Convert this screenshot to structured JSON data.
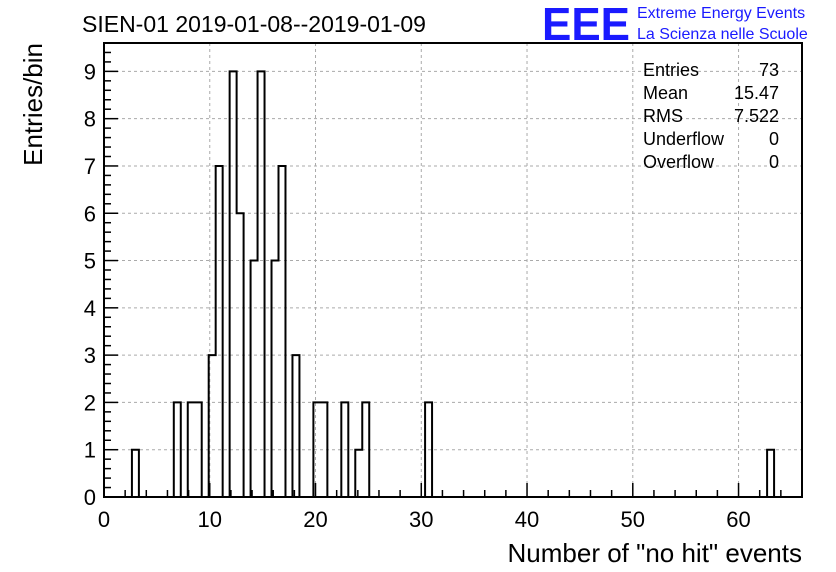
{
  "chart_data": {
    "type": "histogram",
    "title": "SIEN-01 2019-01-08--2019-01-09",
    "xlabel": "Number of \"no hit\" events",
    "ylabel": "Entries/bin",
    "xlim": [
      0,
      66
    ],
    "ylim": [
      0,
      9.6
    ],
    "bin_width": 0.66,
    "x_ticks": [
      0,
      10,
      20,
      30,
      40,
      50,
      60
    ],
    "y_ticks": [
      0,
      1,
      2,
      3,
      4,
      5,
      6,
      7,
      8,
      9
    ],
    "bins": [
      {
        "x": 2.64,
        "count": 1
      },
      {
        "x": 6.6,
        "count": 2
      },
      {
        "x": 7.92,
        "count": 2
      },
      {
        "x": 8.58,
        "count": 2
      },
      {
        "x": 9.9,
        "count": 3
      },
      {
        "x": 10.56,
        "count": 7
      },
      {
        "x": 11.88,
        "count": 9
      },
      {
        "x": 12.54,
        "count": 6
      },
      {
        "x": 13.86,
        "count": 5
      },
      {
        "x": 14.52,
        "count": 9
      },
      {
        "x": 15.84,
        "count": 5
      },
      {
        "x": 16.5,
        "count": 7
      },
      {
        "x": 17.82,
        "count": 3
      },
      {
        "x": 19.8,
        "count": 2
      },
      {
        "x": 20.46,
        "count": 2
      },
      {
        "x": 22.44,
        "count": 2
      },
      {
        "x": 23.76,
        "count": 1
      },
      {
        "x": 24.42,
        "count": 2
      },
      {
        "x": 30.36,
        "count": 2
      },
      {
        "x": 62.7,
        "count": 1
      }
    ],
    "grid": true,
    "stats": {
      "rows": [
        {
          "label": "Entries",
          "value": "73"
        },
        {
          "label": "Mean",
          "value": "15.47"
        },
        {
          "label": "RMS",
          "value": "7.522"
        },
        {
          "label": "Underflow",
          "value": "0"
        },
        {
          "label": "Overflow",
          "value": "0"
        }
      ]
    }
  },
  "logo": {
    "text": "EEE",
    "line1": "Extreme Energy Events",
    "line2": "La Scienza nelle Scuole"
  },
  "colors": {
    "histogram": "#000000",
    "grid": "#aaaaaa",
    "logo": "#1a1aff"
  }
}
